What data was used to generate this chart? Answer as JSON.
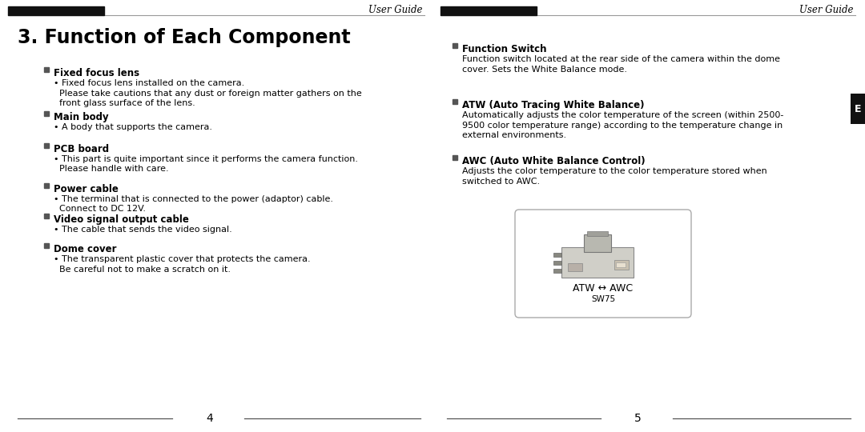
{
  "bg_color": "#ffffff",
  "header_text": "User Guide",
  "page_title": "3. Function of Each Component",
  "left_page_number": "4",
  "right_page_number": "5",
  "bullet_color": "#555555",
  "left_items": [
    {
      "heading": "Fixed focus lens",
      "body_lines": [
        "• Fixed focus lens installed on the camera.",
        "  Please take cautions that any dust or foreign matter gathers on the",
        "  front glass surface of the lens."
      ]
    },
    {
      "heading": "Main body",
      "body_lines": [
        "• A body that supports the camera."
      ]
    },
    {
      "heading": "PCB board",
      "body_lines": [
        "• This part is quite important since it performs the camera function.",
        "  Please handle with care."
      ]
    },
    {
      "heading": "Power cable",
      "body_lines": [
        "• The terminal that is connected to the power (adaptor) cable.",
        "  Connect to DC 12V."
      ]
    },
    {
      "heading": "Video signal output cable",
      "body_lines": [
        "• The cable that sends the video signal."
      ]
    },
    {
      "heading": "Dome cover",
      "body_lines": [
        "• The transparent plastic cover that protects the camera.",
        "  Be careful not to make a scratch on it."
      ]
    }
  ],
  "right_items": [
    {
      "heading": "Function Switch",
      "body_lines": [
        "Function switch located at the rear side of the camera within the dome",
        "cover. Sets the White Balance mode."
      ]
    },
    {
      "heading": "ATW (Auto Tracing White Balance)",
      "body_lines": [
        "Automatically adjusts the color temperature of the screen (within 2500-",
        "9500 color temperature range) according to the temperature change in",
        "external environments."
      ]
    },
    {
      "heading": "AWC (Auto White Balance Control)",
      "body_lines": [
        "Adjusts the color temperature to the color temperature stored when",
        "switched to AWC."
      ]
    }
  ],
  "switch_label": "ATW ↔ AWC",
  "switch_sublabel": "SW75",
  "e_tab_text": "E"
}
